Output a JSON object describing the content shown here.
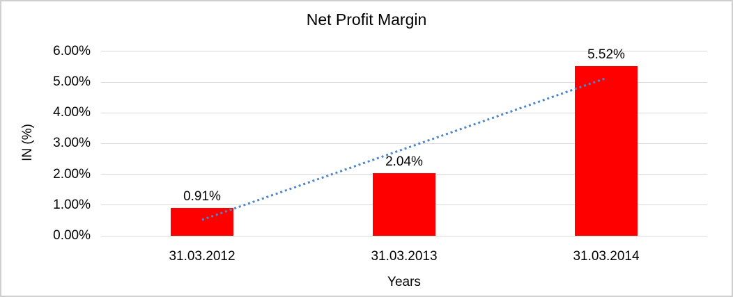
{
  "chart_data": {
    "type": "bar",
    "title": "Net Profit Margin",
    "xlabel": "Years",
    "ylabel": "IN (%)",
    "categories": [
      "31.03.2012",
      "31.03.2013",
      "31.03.2014"
    ],
    "values": [
      0.91,
      2.04,
      5.52
    ],
    "data_labels": [
      "0.91%",
      "2.04%",
      "5.52%"
    ],
    "ytick_labels": [
      "0.00%",
      "1.00%",
      "2.00%",
      "3.00%",
      "4.00%",
      "5.00%",
      "6.00%"
    ],
    "ytick_values": [
      0,
      1,
      2,
      3,
      4,
      5,
      6
    ],
    "ylim": [
      0,
      6
    ],
    "grid": true,
    "legend_position": "none",
    "bar_color": "#ff0000",
    "gridline_color": "#d9d9d9",
    "text_color": "#000000",
    "trendline": {
      "type": "linear",
      "style": "dotted",
      "color": "#4e86c6",
      "start_value": 0.52,
      "end_value": 5.13
    }
  }
}
